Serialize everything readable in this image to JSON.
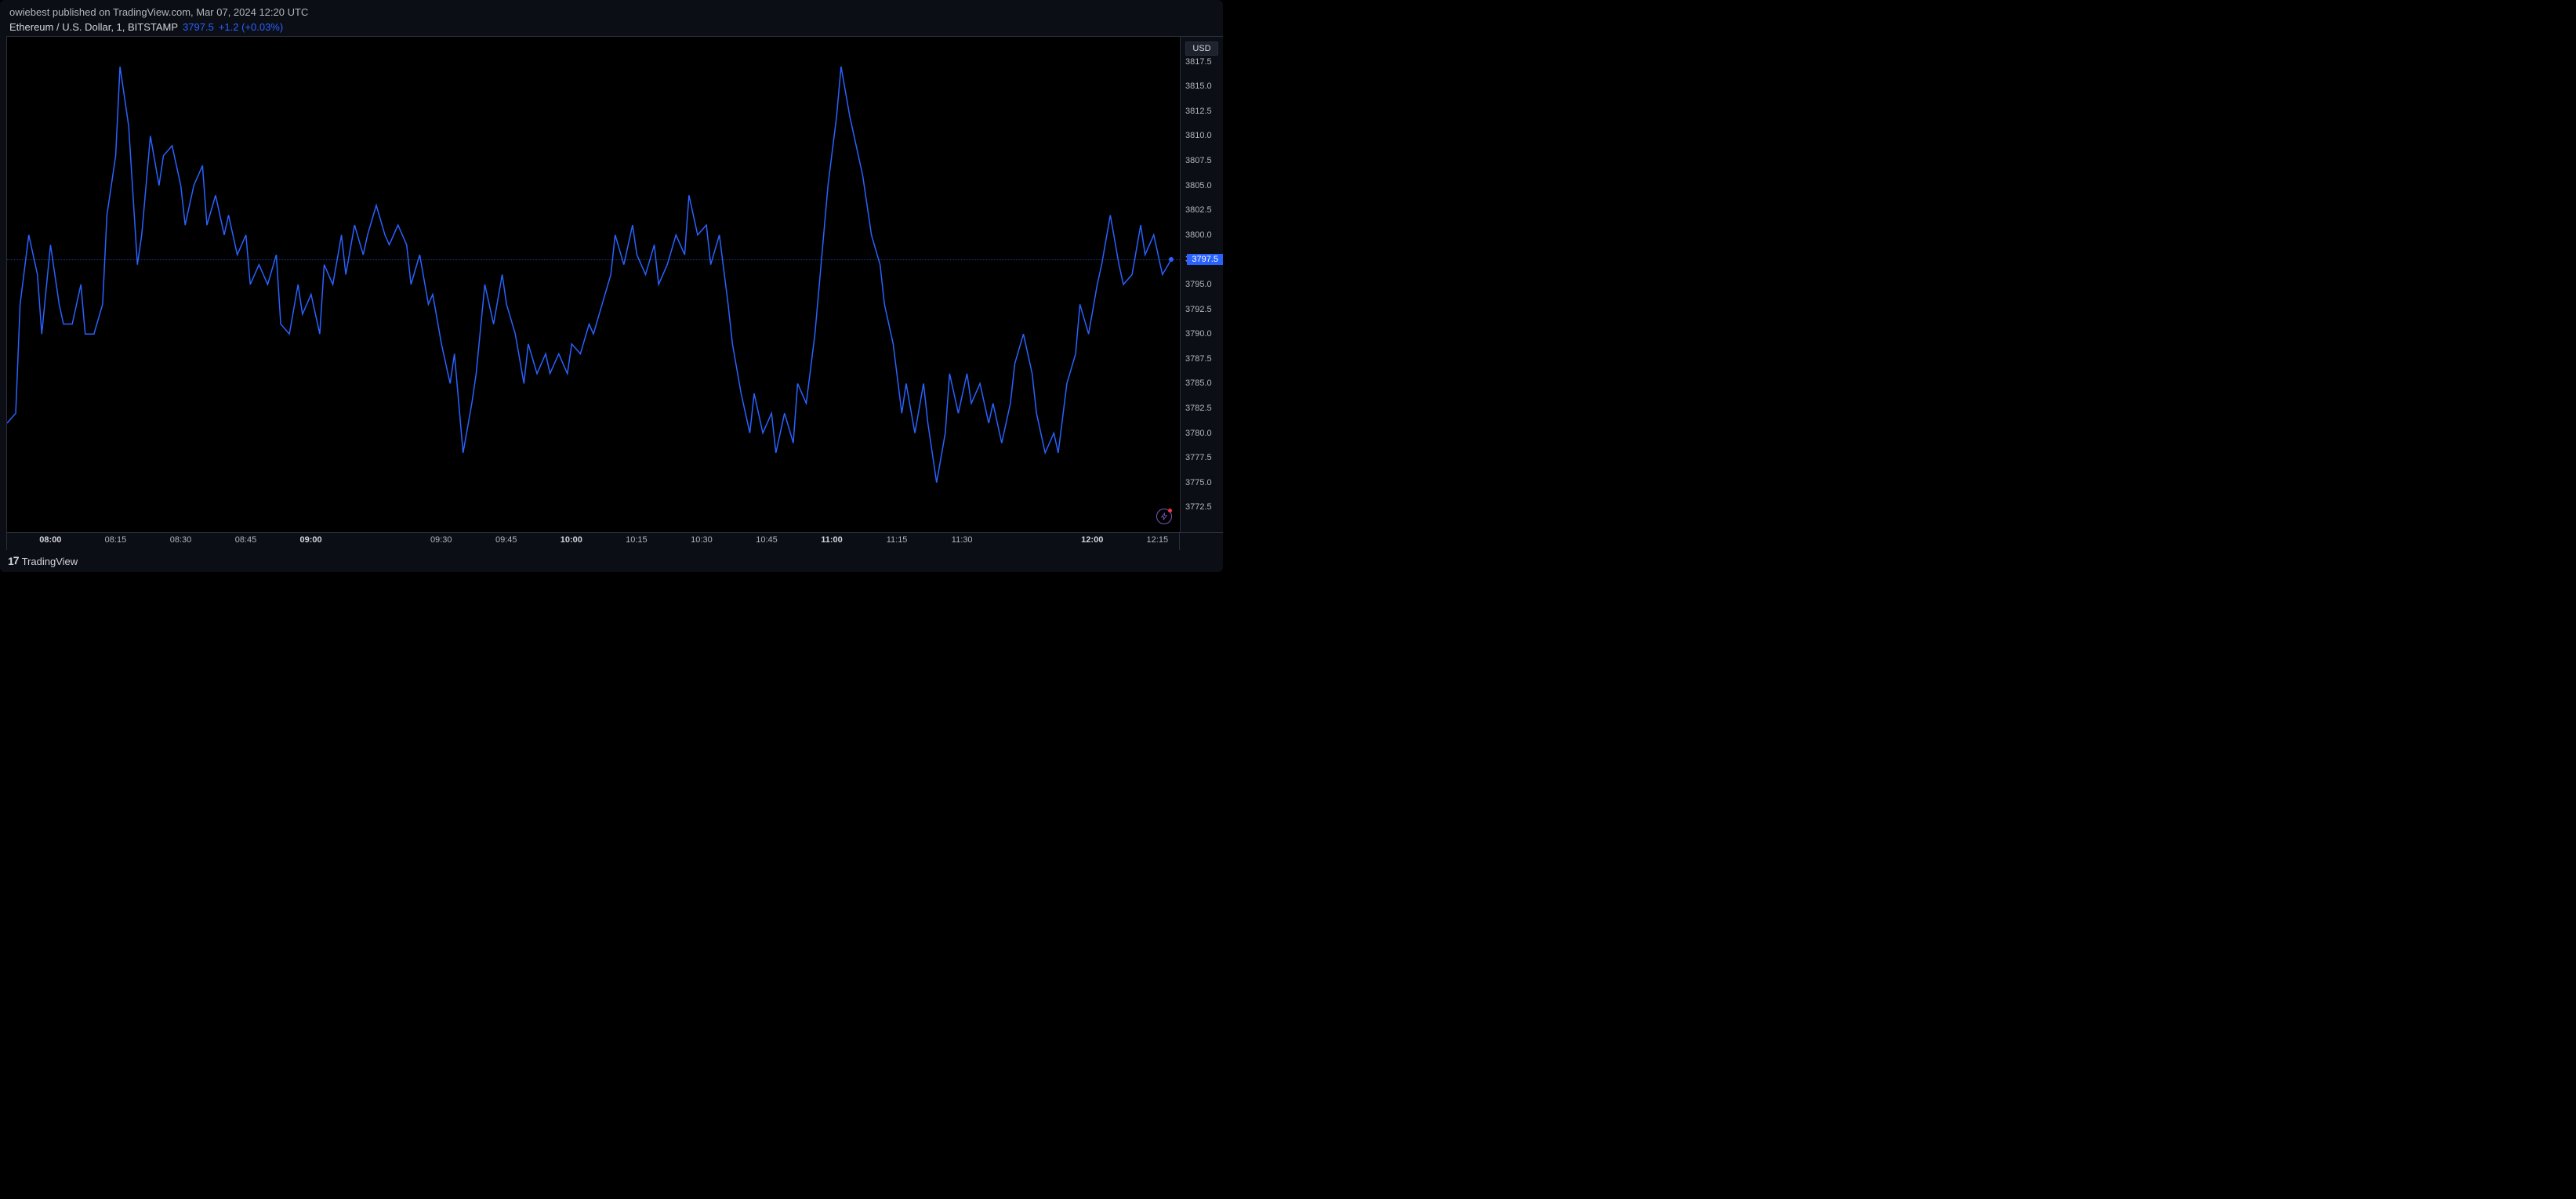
{
  "header": {
    "publish_text": "owiebest published on TradingView.com, Mar 07, 2024 12:20 UTC"
  },
  "symbol": {
    "name": "Ethereum / U.S. Dollar, 1, BITSTAMP",
    "price": "3797.5",
    "change": "+1.2 (+0.03%)"
  },
  "footer": {
    "brand": "TradingView"
  },
  "yaxis": {
    "currency_label": "USD",
    "min": 3770,
    "max": 3820,
    "ticks": [
      3772.5,
      3775.0,
      3777.5,
      3780.0,
      3782.5,
      3785.0,
      3787.5,
      3790.0,
      3792.5,
      3795.0,
      3797.5,
      3800.0,
      3802.5,
      3805.0,
      3807.5,
      3810.0,
      3812.5,
      3815.0,
      3817.5
    ],
    "current_price": 3797.5,
    "current_price_label": "3797.5"
  },
  "xaxis": {
    "min": 0,
    "max": 270,
    "ticks": [
      {
        "pos": 10,
        "label": "08:00",
        "bold": true
      },
      {
        "pos": 25,
        "label": "08:15",
        "bold": false
      },
      {
        "pos": 40,
        "label": "08:30",
        "bold": false
      },
      {
        "pos": 55,
        "label": "08:45",
        "bold": false
      },
      {
        "pos": 70,
        "label": "09:00",
        "bold": true
      },
      {
        "pos": 100,
        "label": "09:30",
        "bold": false
      },
      {
        "pos": 115,
        "label": "09:45",
        "bold": false
      },
      {
        "pos": 130,
        "label": "10:00",
        "bold": true
      },
      {
        "pos": 145,
        "label": "10:15",
        "bold": false
      },
      {
        "pos": 160,
        "label": "10:30",
        "bold": false
      },
      {
        "pos": 175,
        "label": "10:45",
        "bold": false
      },
      {
        "pos": 190,
        "label": "11:00",
        "bold": true
      },
      {
        "pos": 205,
        "label": "11:15",
        "bold": false
      },
      {
        "pos": 220,
        "label": "11:30",
        "bold": false
      },
      {
        "pos": 250,
        "label": "12:00",
        "bold": true
      },
      {
        "pos": 265,
        "label": "12:15",
        "bold": false
      }
    ]
  },
  "chart": {
    "type": "line",
    "line_color": "#2962ff",
    "line_width": 1.5,
    "background_color": "#000000",
    "grid_color": "#2a2e39",
    "text_color": "#b2b5be",
    "accent_color": "#2962ff",
    "data": [
      [
        0,
        3781
      ],
      [
        2,
        3782
      ],
      [
        3,
        3793
      ],
      [
        5,
        3800
      ],
      [
        7,
        3796
      ],
      [
        8,
        3790
      ],
      [
        10,
        3799
      ],
      [
        12,
        3793
      ],
      [
        13,
        3791
      ],
      [
        15,
        3791
      ],
      [
        17,
        3795
      ],
      [
        18,
        3790
      ],
      [
        20,
        3790
      ],
      [
        22,
        3793
      ],
      [
        23,
        3802
      ],
      [
        25,
        3808
      ],
      [
        26,
        3817
      ],
      [
        28,
        3811
      ],
      [
        30,
        3797
      ],
      [
        31,
        3800
      ],
      [
        33,
        3810
      ],
      [
        35,
        3805
      ],
      [
        36,
        3808
      ],
      [
        38,
        3809
      ],
      [
        40,
        3805
      ],
      [
        41,
        3801
      ],
      [
        43,
        3805
      ],
      [
        45,
        3807
      ],
      [
        46,
        3801
      ],
      [
        48,
        3804
      ],
      [
        50,
        3800
      ],
      [
        51,
        3802
      ],
      [
        53,
        3798
      ],
      [
        55,
        3800
      ],
      [
        56,
        3795
      ],
      [
        58,
        3797
      ],
      [
        60,
        3795
      ],
      [
        62,
        3798
      ],
      [
        63,
        3791
      ],
      [
        65,
        3790
      ],
      [
        67,
        3795
      ],
      [
        68,
        3792
      ],
      [
        70,
        3794
      ],
      [
        72,
        3790
      ],
      [
        73,
        3797
      ],
      [
        75,
        3795
      ],
      [
        77,
        3800
      ],
      [
        78,
        3796
      ],
      [
        80,
        3801
      ],
      [
        82,
        3798
      ],
      [
        83,
        3800
      ],
      [
        85,
        3803
      ],
      [
        87,
        3800
      ],
      [
        88,
        3799
      ],
      [
        90,
        3801
      ],
      [
        92,
        3799
      ],
      [
        93,
        3795
      ],
      [
        95,
        3798
      ],
      [
        97,
        3793
      ],
      [
        98,
        3794
      ],
      [
        100,
        3789
      ],
      [
        102,
        3785
      ],
      [
        103,
        3788
      ],
      [
        105,
        3778
      ],
      [
        107,
        3783
      ],
      [
        108,
        3786
      ],
      [
        110,
        3795
      ],
      [
        112,
        3791
      ],
      [
        114,
        3796
      ],
      [
        115,
        3793
      ],
      [
        117,
        3790
      ],
      [
        119,
        3785
      ],
      [
        120,
        3789
      ],
      [
        122,
        3786
      ],
      [
        124,
        3788
      ],
      [
        125,
        3786
      ],
      [
        127,
        3788
      ],
      [
        129,
        3786
      ],
      [
        130,
        3789
      ],
      [
        132,
        3788
      ],
      [
        134,
        3791
      ],
      [
        135,
        3790
      ],
      [
        137,
        3793
      ],
      [
        139,
        3796
      ],
      [
        140,
        3800
      ],
      [
        142,
        3797
      ],
      [
        144,
        3801
      ],
      [
        145,
        3798
      ],
      [
        147,
        3796
      ],
      [
        149,
        3799
      ],
      [
        150,
        3795
      ],
      [
        152,
        3797
      ],
      [
        154,
        3800
      ],
      [
        156,
        3798
      ],
      [
        157,
        3804
      ],
      [
        159,
        3800
      ],
      [
        161,
        3801
      ],
      [
        162,
        3797
      ],
      [
        164,
        3800
      ],
      [
        166,
        3793
      ],
      [
        167,
        3789
      ],
      [
        169,
        3784
      ],
      [
        171,
        3780
      ],
      [
        172,
        3784
      ],
      [
        174,
        3780
      ],
      [
        176,
        3782
      ],
      [
        177,
        3778
      ],
      [
        179,
        3782
      ],
      [
        181,
        3779
      ],
      [
        182,
        3785
      ],
      [
        184,
        3783
      ],
      [
        186,
        3790
      ],
      [
        187,
        3795
      ],
      [
        189,
        3805
      ],
      [
        191,
        3812
      ],
      [
        192,
        3817
      ],
      [
        194,
        3812
      ],
      [
        196,
        3808
      ],
      [
        197,
        3806
      ],
      [
        199,
        3800
      ],
      [
        201,
        3797
      ],
      [
        202,
        3793
      ],
      [
        204,
        3789
      ],
      [
        206,
        3782
      ],
      [
        207,
        3785
      ],
      [
        209,
        3780
      ],
      [
        211,
        3785
      ],
      [
        212,
        3781
      ],
      [
        214,
        3775
      ],
      [
        216,
        3780
      ],
      [
        217,
        3786
      ],
      [
        219,
        3782
      ],
      [
        221,
        3786
      ],
      [
        222,
        3783
      ],
      [
        224,
        3785
      ],
      [
        226,
        3781
      ],
      [
        227,
        3783
      ],
      [
        229,
        3779
      ],
      [
        231,
        3783
      ],
      [
        232,
        3787
      ],
      [
        234,
        3790
      ],
      [
        236,
        3786
      ],
      [
        237,
        3782
      ],
      [
        239,
        3778
      ],
      [
        241,
        3780
      ],
      [
        242,
        3778
      ],
      [
        244,
        3785
      ],
      [
        246,
        3788
      ],
      [
        247,
        3793
      ],
      [
        249,
        3790
      ],
      [
        251,
        3795
      ],
      [
        252,
        3797
      ],
      [
        254,
        3802
      ],
      [
        256,
        3797
      ],
      [
        257,
        3795
      ],
      [
        259,
        3796
      ],
      [
        261,
        3801
      ],
      [
        262,
        3798
      ],
      [
        264,
        3800
      ],
      [
        266,
        3796
      ],
      [
        268,
        3797.5
      ]
    ]
  }
}
